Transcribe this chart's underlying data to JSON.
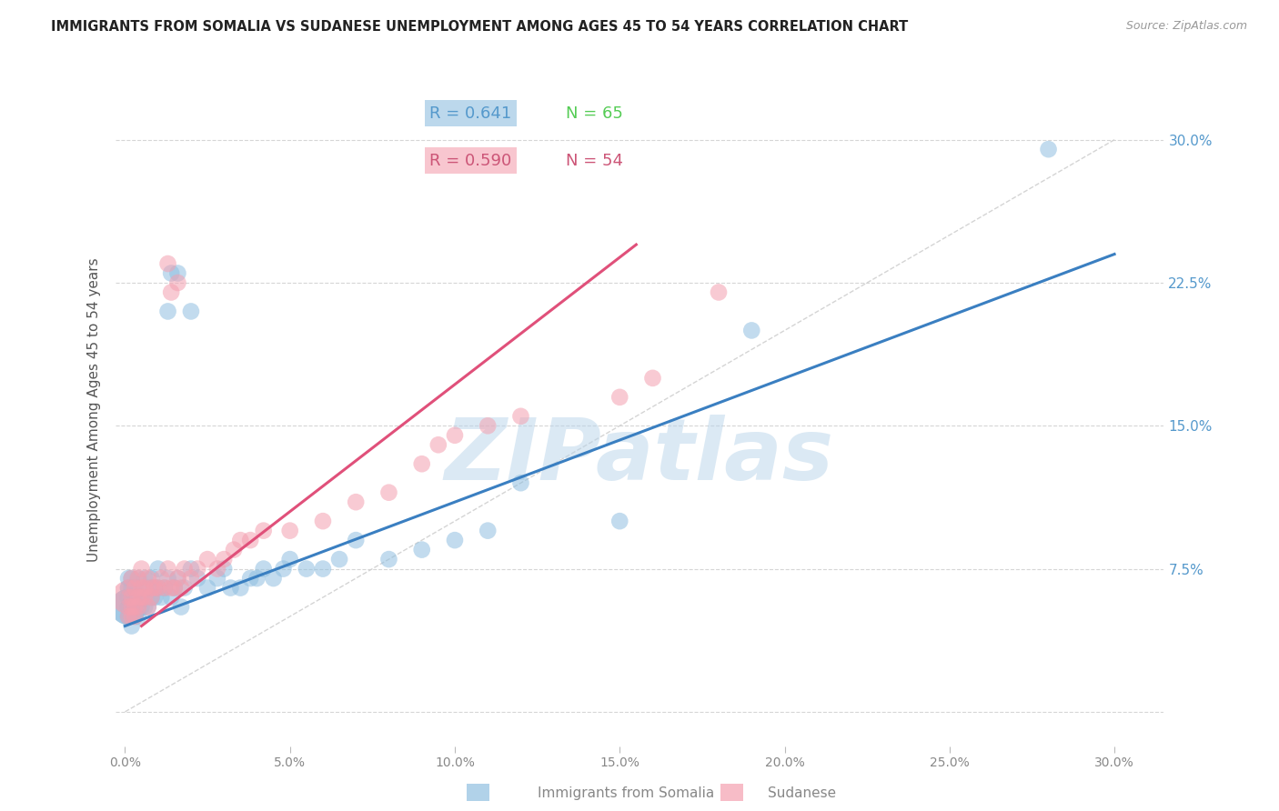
{
  "title": "IMMIGRANTS FROM SOMALIA VS SUDANESE UNEMPLOYMENT AMONG AGES 45 TO 54 YEARS CORRELATION CHART",
  "source": "Source: ZipAtlas.com",
  "ylabel": "Unemployment Among Ages 45 to 54 years",
  "xlim": [
    -0.003,
    0.315
  ],
  "ylim": [
    -0.018,
    0.335
  ],
  "xticks": [
    0.0,
    0.05,
    0.1,
    0.15,
    0.2,
    0.25,
    0.3
  ],
  "xticklabels": [
    "0.0%",
    "5.0%",
    "10.0%",
    "15.0%",
    "20.0%",
    "25.0%",
    "30.0%"
  ],
  "yticks_right": [
    0.0,
    0.075,
    0.15,
    0.225,
    0.3
  ],
  "yticklabels_right": [
    "",
    "7.5%",
    "15.0%",
    "22.5%",
    "30.0%"
  ],
  "blue_scatter_color": "#90bfe0",
  "pink_scatter_color": "#f4a0b0",
  "blue_line_color": "#3a7fc1",
  "pink_line_color": "#e0507a",
  "legend_blue_R": "R = 0.641",
  "legend_blue_N": "N = 65",
  "legend_pink_R": "R = 0.590",
  "legend_pink_N": "N = 54",
  "watermark": "ZIPatlas",
  "watermark_color": "#b8d4ea",
  "blue_scatter_x": [
    0.001,
    0.001,
    0.001,
    0.001,
    0.001,
    0.002,
    0.002,
    0.002,
    0.002,
    0.002,
    0.003,
    0.003,
    0.003,
    0.003,
    0.004,
    0.004,
    0.004,
    0.004,
    0.005,
    0.005,
    0.005,
    0.006,
    0.006,
    0.006,
    0.007,
    0.007,
    0.008,
    0.008,
    0.009,
    0.009,
    0.01,
    0.01,
    0.011,
    0.012,
    0.013,
    0.014,
    0.015,
    0.016,
    0.017,
    0.018,
    0.02,
    0.022,
    0.025,
    0.028,
    0.03,
    0.032,
    0.035,
    0.038,
    0.04,
    0.042,
    0.045,
    0.048,
    0.05,
    0.055,
    0.06,
    0.065,
    0.07,
    0.08,
    0.09,
    0.1,
    0.11,
    0.12,
    0.15,
    0.19,
    0.28
  ],
  "blue_scatter_y": [
    0.055,
    0.06,
    0.065,
    0.07,
    0.05,
    0.055,
    0.06,
    0.065,
    0.07,
    0.045,
    0.05,
    0.055,
    0.06,
    0.065,
    0.05,
    0.055,
    0.06,
    0.07,
    0.055,
    0.06,
    0.065,
    0.055,
    0.06,
    0.07,
    0.055,
    0.065,
    0.06,
    0.07,
    0.06,
    0.065,
    0.065,
    0.075,
    0.06,
    0.065,
    0.07,
    0.06,
    0.065,
    0.07,
    0.055,
    0.065,
    0.075,
    0.07,
    0.065,
    0.07,
    0.075,
    0.065,
    0.065,
    0.07,
    0.07,
    0.075,
    0.07,
    0.075,
    0.08,
    0.075,
    0.075,
    0.08,
    0.09,
    0.08,
    0.085,
    0.09,
    0.095,
    0.12,
    0.1,
    0.2,
    0.295
  ],
  "pink_scatter_x": [
    0.001,
    0.001,
    0.001,
    0.001,
    0.002,
    0.002,
    0.002,
    0.002,
    0.003,
    0.003,
    0.003,
    0.004,
    0.004,
    0.004,
    0.005,
    0.005,
    0.005,
    0.006,
    0.006,
    0.007,
    0.007,
    0.008,
    0.008,
    0.009,
    0.01,
    0.011,
    0.012,
    0.013,
    0.014,
    0.015,
    0.016,
    0.017,
    0.018,
    0.02,
    0.022,
    0.025,
    0.028,
    0.03,
    0.033,
    0.035,
    0.038,
    0.042,
    0.05,
    0.06,
    0.07,
    0.08,
    0.09,
    0.095,
    0.1,
    0.11,
    0.12,
    0.15,
    0.16,
    0.18
  ],
  "pink_scatter_y": [
    0.05,
    0.055,
    0.06,
    0.065,
    0.05,
    0.055,
    0.06,
    0.07,
    0.05,
    0.055,
    0.065,
    0.055,
    0.06,
    0.07,
    0.06,
    0.065,
    0.075,
    0.06,
    0.065,
    0.055,
    0.07,
    0.06,
    0.065,
    0.065,
    0.065,
    0.07,
    0.065,
    0.075,
    0.065,
    0.065,
    0.07,
    0.065,
    0.075,
    0.07,
    0.075,
    0.08,
    0.075,
    0.08,
    0.085,
    0.09,
    0.09,
    0.095,
    0.095,
    0.1,
    0.11,
    0.115,
    0.13,
    0.14,
    0.145,
    0.15,
    0.155,
    0.165,
    0.175,
    0.22
  ],
  "blue_scatter_special": [
    [
      0.013,
      0.21
    ],
    [
      0.014,
      0.23
    ],
    [
      0.016,
      0.23
    ],
    [
      0.02,
      0.21
    ]
  ],
  "pink_scatter_special": [
    [
      0.013,
      0.235
    ],
    [
      0.014,
      0.22
    ],
    [
      0.016,
      0.225
    ]
  ],
  "blue_line_x": [
    0.0,
    0.3
  ],
  "blue_line_y": [
    0.045,
    0.24
  ],
  "pink_line_x": [
    0.005,
    0.155
  ],
  "pink_line_y": [
    0.045,
    0.245
  ],
  "diag_line_x": [
    0.0,
    0.3
  ],
  "diag_line_y": [
    0.0,
    0.3
  ]
}
